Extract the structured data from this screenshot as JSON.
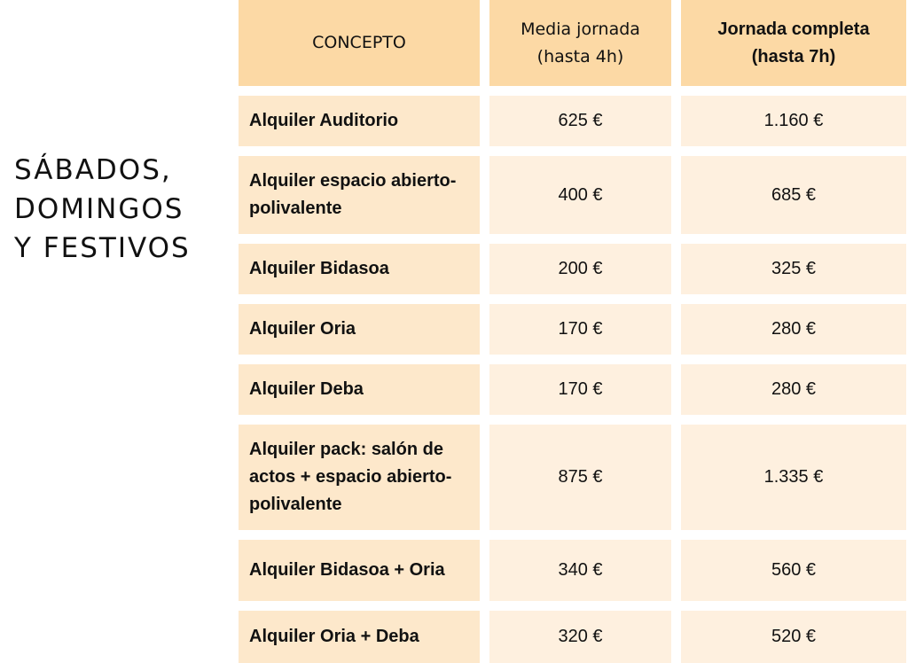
{
  "side_title": [
    "SÁBADOS,",
    "DOMINGOS",
    "Y FESTIVOS"
  ],
  "headers": {
    "concepto": "CONCEPTO",
    "media": "Media jornada (hasta 4h)",
    "completa": "Jornada completa (hasta 7h)"
  },
  "rows": [
    {
      "concepto": "Alquiler Auditorio",
      "media": "625 €",
      "completa": "1.160 €"
    },
    {
      "concepto": "Alquiler espacio abierto-polivalente",
      "media": "400 €",
      "completa": "685 €"
    },
    {
      "concepto": "Alquiler Bidasoa",
      "media": "200 €",
      "completa": "325 €"
    },
    {
      "concepto": "Alquiler Oria",
      "media": "170 €",
      "completa": "280 €"
    },
    {
      "concepto": "Alquiler Deba",
      "media": "170 €",
      "completa": "280 €"
    },
    {
      "concepto": "Alquiler pack: salón de actos + espacio abierto-polivalente",
      "media": "875 €",
      "completa": "1.335 €"
    },
    {
      "concepto": "Alquiler Bidasoa + Oria",
      "media": "340 €",
      "completa": "560 €"
    },
    {
      "concepto": "Alquiler Oria + Deba",
      "media": "320 €",
      "completa": "520 €"
    }
  ]
}
